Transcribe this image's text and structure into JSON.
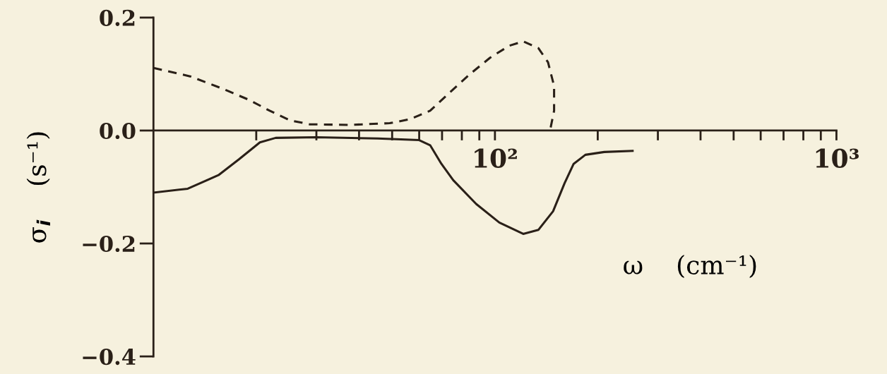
{
  "chart_data": {
    "type": "line",
    "xlabel": "ω    (cm⁻¹)",
    "ylabel": "σ$_{i}$    (s⁻¹)",
    "log": "x",
    "xlim": [
      10,
      1000
    ],
    "ylim": [
      -0.4,
      0.2
    ],
    "xticks": [
      {
        "value": 20,
        "label": null
      },
      {
        "value": 30,
        "label": null
      },
      {
        "value": 40,
        "label": null
      },
      {
        "value": 50,
        "label": null
      },
      {
        "value": 60,
        "label": null
      },
      {
        "value": 70,
        "label": null
      },
      {
        "value": 80,
        "label": null
      },
      {
        "value": 90,
        "label": null
      },
      {
        "value": 100,
        "label": "10²"
      },
      {
        "value": 200,
        "label": null
      },
      {
        "value": 300,
        "label": null
      },
      {
        "value": 400,
        "label": null
      },
      {
        "value": 500,
        "label": null
      },
      {
        "value": 600,
        "label": null
      },
      {
        "value": 700,
        "label": null
      },
      {
        "value": 800,
        "label": null
      },
      {
        "value": 900,
        "label": null
      },
      {
        "value": 1000,
        "label": "10³"
      }
    ],
    "yticks": [
      0.2,
      {
        "value": 0.0,
        "label": "0.0"
      },
      -0.2,
      -0.4
    ],
    "series": [
      {
        "color": "#2a2018",
        "line_style": "dashed",
        "x": [
          10,
          12.8,
          15.8,
          19.1,
          21.9,
          25.1,
          28.7,
          37.6,
          49.2,
          56.4,
          64.6,
          73.6,
          84.5,
          96.8,
          110,
          121,
          134,
          143,
          149,
          149,
          145
        ],
        "values": [
          0.111,
          0.096,
          0.075,
          0.054,
          0.035,
          0.018,
          0.011,
          0.01,
          0.013,
          0.02,
          0.035,
          0.067,
          0.1,
          0.129,
          0.15,
          0.158,
          0.146,
          0.121,
          0.079,
          0.035,
          0.0
        ]
      },
      {
        "color": "#2a2018",
        "line_style": "solid",
        "x": [
          10,
          12.6,
          15.5,
          17.8,
          20.5,
          22.8,
          30,
          45.4,
          60,
          64.6,
          69.7,
          75.5,
          88.1,
          103,
          121,
          134,
          148,
          160,
          170,
          184,
          209,
          253
        ],
        "values": [
          -0.11,
          -0.103,
          -0.079,
          -0.051,
          -0.021,
          -0.013,
          -0.012,
          -0.014,
          -0.017,
          -0.026,
          -0.059,
          -0.088,
          -0.13,
          -0.163,
          -0.183,
          -0.176,
          -0.143,
          -0.093,
          -0.059,
          -0.043,
          -0.038,
          -0.036
        ]
      }
    ]
  }
}
